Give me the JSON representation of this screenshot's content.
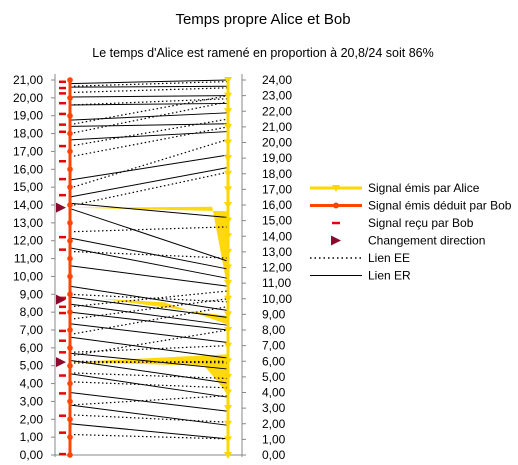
{
  "chart_data": {
    "type": "line",
    "title": "Temps propre Alice et Bob",
    "subtitle": "Le temps d'Alice est ramené en proportion à 20,8/24 soit 86%",
    "left_axis": {
      "min": 0,
      "max": 21,
      "step": 1,
      "tick_labels": [
        "0,00",
        "1,00",
        "2,00",
        "3,00",
        "4,00",
        "5,00",
        "6,00",
        "7,00",
        "8,00",
        "9,00",
        "10,00",
        "11,00",
        "12,00",
        "13,00",
        "14,00",
        "15,00",
        "16,00",
        "17,00",
        "18,00",
        "19,00",
        "20,00",
        "21,00"
      ]
    },
    "right_axis": {
      "min": 0,
      "max": 24,
      "step": 1,
      "tick_labels": [
        "0,00",
        "1,00",
        "2,00",
        "3,00",
        "4,00",
        "5,00",
        "6,00",
        "7,00",
        "8,00",
        "9,00",
        "10,00",
        "11,00",
        "12,00",
        "13,00",
        "14,00",
        "15,00",
        "16,00",
        "17,00",
        "18,00",
        "19,00",
        "20,00",
        "21,00",
        "22,00",
        "23,00",
        "24,00"
      ]
    },
    "x_axis": {
      "min": 0,
      "max": 1
    },
    "grid": false,
    "legend_position": "right",
    "colors": {
      "alice": "#ffd700",
      "bob": "#ff4500",
      "received": "#e8000b",
      "direction": "#8b0a2e",
      "links": "#000000",
      "axis": "#888888"
    },
    "series": [
      {
        "name": "Signal émis par Alice",
        "style": "yellow-line-triangle-markers",
        "x": 1,
        "values": [
          0,
          1,
          2,
          3,
          4,
          5,
          6,
          7,
          8,
          9,
          10,
          11,
          12,
          13,
          14,
          15,
          16,
          17,
          18,
          19,
          20,
          21,
          22,
          23,
          24
        ]
      },
      {
        "name": "Signal émis déduit par Bob",
        "style": "orange-red-line-circle-markers",
        "x": 0,
        "values": [
          0,
          1,
          2,
          3,
          4,
          5,
          6,
          7,
          8,
          9,
          10,
          11,
          12,
          13,
          14,
          15,
          16,
          17,
          18,
          19,
          20,
          21
        ]
      },
      {
        "name": "Signal reçu par Bob",
        "style": "red-dash-markers",
        "x": 0,
        "values": [
          0.05,
          1.25,
          2.2,
          3.45,
          4.45,
          5.75,
          6.4,
          6.95,
          7.95,
          8.3,
          8.8,
          11.5,
          12.2,
          14.55,
          15.45,
          16.45,
          17.3,
          18.1,
          18.5,
          19.1,
          19.7,
          20.25,
          20.55,
          20.9
        ]
      },
      {
        "name": "Changement direction",
        "style": "maroon-triangle-markers",
        "x": 0,
        "values": [
          5.2,
          8.7,
          13.85
        ]
      },
      {
        "name": "Lien EE",
        "style": "dotted-segments",
        "segments": [
          [
            1.15,
            1.03
          ],
          [
            2.25,
            2.1
          ],
          [
            2.8,
            3.8
          ],
          [
            4.1,
            4.3
          ],
          [
            4.6,
            4.9
          ],
          [
            5.15,
            6.0
          ],
          [
            5.25,
            5.9
          ],
          [
            5.55,
            8.0
          ],
          [
            5.75,
            7.0
          ],
          [
            6.75,
            9.5
          ],
          [
            7.6,
            10.0
          ],
          [
            8.3,
            10.5
          ],
          [
            9.0,
            9.8
          ],
          [
            11.4,
            12.6
          ],
          [
            12.5,
            14.6
          ],
          [
            13.95,
            18.1
          ],
          [
            14.95,
            20.2
          ],
          [
            16.7,
            21.0
          ],
          [
            17.3,
            21.5
          ],
          [
            18.0,
            22.6
          ],
          [
            18.5,
            23.0
          ],
          [
            19.6,
            22.8
          ],
          [
            20.3,
            23.5
          ],
          [
            20.65,
            23.9
          ]
        ]
      },
      {
        "name": "Lien ER",
        "style": "solid-segments",
        "segments": [
          [
            1.75,
            1.03
          ],
          [
            2.8,
            1.9
          ],
          [
            3.5,
            2.8
          ],
          [
            4.55,
            3.7
          ],
          [
            5.3,
            4.6
          ],
          [
            5.7,
            5.5
          ],
          [
            6.6,
            6.2
          ],
          [
            7.35,
            7.2
          ],
          [
            8.0,
            8.0
          ],
          [
            8.45,
            8.3
          ],
          [
            8.85,
            8.8
          ],
          [
            9.45,
            9.25
          ],
          [
            10.6,
            10.8
          ],
          [
            11.6,
            11.3
          ],
          [
            12.15,
            11.9
          ],
          [
            13.8,
            12.4
          ],
          [
            14.1,
            15.2
          ],
          [
            14.45,
            18.4
          ],
          [
            15.4,
            19.2
          ],
          [
            17.65,
            20.7
          ],
          [
            18.4,
            21.2
          ],
          [
            18.75,
            21.9
          ],
          [
            19.6,
            22.5
          ],
          [
            20.05,
            23.0
          ],
          [
            20.6,
            23.6
          ],
          [
            20.8,
            24.0
          ]
        ]
      }
    ],
    "legend": [
      "Signal émis par Alice",
      "Signal émis déduit par Bob",
      "Signal reçu par Bob",
      "Changement direction",
      "Lien EE",
      "Lien ER"
    ]
  }
}
